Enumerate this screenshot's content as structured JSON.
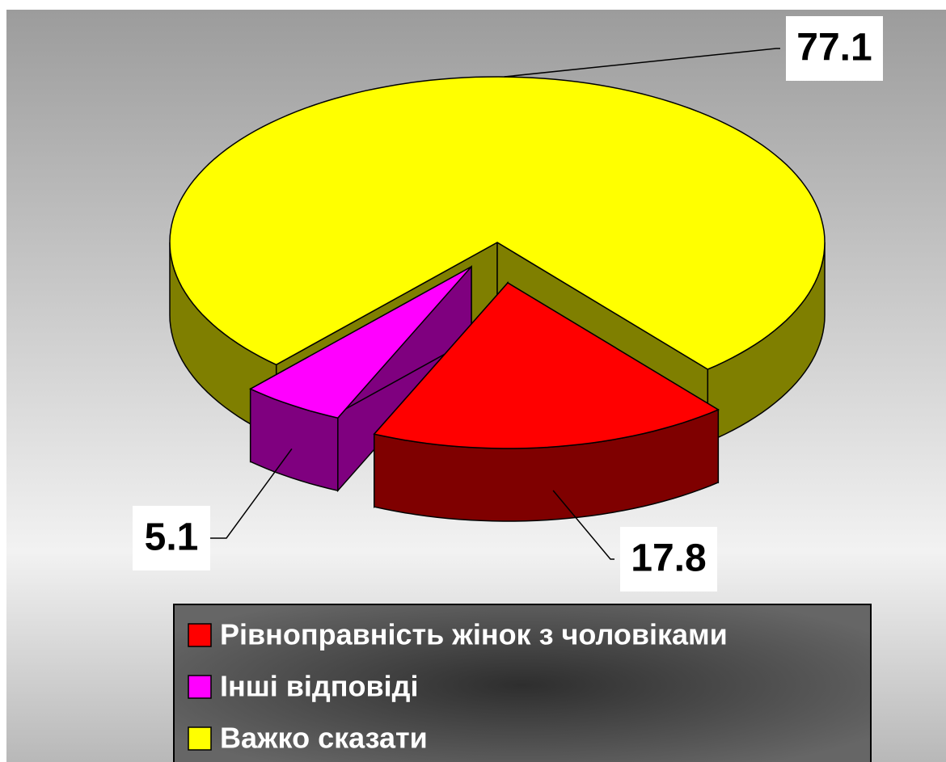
{
  "chart_data": {
    "type": "pie",
    "categories": [
      "Рівноправність жінок з чоловіками",
      "Інші відповіді",
      "Важко сказати"
    ],
    "values": [
      17.8,
      5.1,
      77.1
    ],
    "colors": [
      "#ff0000",
      "#ff00ff",
      "#ffff00"
    ],
    "legend": "bottom"
  }
}
